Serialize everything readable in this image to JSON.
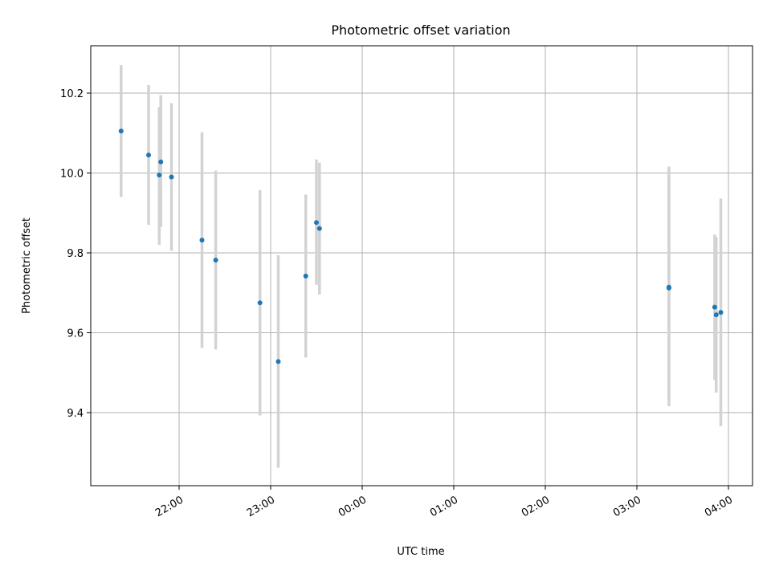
{
  "chart_data": {
    "type": "scatter",
    "title": "Photometric offset variation",
    "xlabel": "UTC time",
    "ylabel": "Photometric offset",
    "x_tick_labels": [
      "22:00",
      "23:00",
      "00:00",
      "01:00",
      "02:00",
      "03:00",
      "04:00"
    ],
    "y_tick_labels": [
      "9.4",
      "9.6",
      "9.8",
      "10.0",
      "10.2"
    ],
    "y_ticks": [
      9.4,
      9.6,
      9.8,
      10.0,
      10.2
    ],
    "ylim": [
      9.22,
      10.32
    ],
    "grid": true,
    "errorbar_color": "#d3d3d3",
    "point_color": "#1f77b4",
    "points": [
      {
        "x": "21:22",
        "y": 10.105,
        "ylow": 9.94,
        "yhigh": 10.27
      },
      {
        "x": "21:40",
        "y": 10.045,
        "ylow": 9.87,
        "yhigh": 10.22
      },
      {
        "x": "21:47",
        "y": 9.995,
        "ylow": 9.82,
        "yhigh": 10.165
      },
      {
        "x": "21:48",
        "y": 10.028,
        "ylow": 9.865,
        "yhigh": 10.195
      },
      {
        "x": "21:55",
        "y": 9.99,
        "ylow": 9.805,
        "yhigh": 10.175
      },
      {
        "x": "22:15",
        "y": 9.832,
        "ylow": 9.562,
        "yhigh": 10.102
      },
      {
        "x": "22:24",
        "y": 9.782,
        "ylow": 9.558,
        "yhigh": 10.006
      },
      {
        "x": "22:53",
        "y": 9.675,
        "ylow": 9.393,
        "yhigh": 9.957
      },
      {
        "x": "23:05",
        "y": 9.528,
        "ylow": 9.262,
        "yhigh": 9.794
      },
      {
        "x": "23:23",
        "y": 9.742,
        "ylow": 9.538,
        "yhigh": 9.946
      },
      {
        "x": "23:30",
        "y": 9.876,
        "ylow": 9.72,
        "yhigh": 10.034
      },
      {
        "x": "23:32",
        "y": 9.861,
        "ylow": 9.696,
        "yhigh": 10.026
      },
      {
        "x": "03:21",
        "y": 9.714,
        "ylow": 9.416,
        "yhigh": 10.016
      },
      {
        "x": "03:21",
        "y": 9.712,
        "ylow": 9.434,
        "yhigh": 9.99
      },
      {
        "x": "03:51",
        "y": 9.664,
        "ylow": 9.482,
        "yhigh": 9.846
      },
      {
        "x": "03:52",
        "y": 9.645,
        "ylow": 9.45,
        "yhigh": 9.84
      },
      {
        "x": "03:55",
        "y": 9.651,
        "ylow": 9.366,
        "yhigh": 9.936
      }
    ]
  }
}
